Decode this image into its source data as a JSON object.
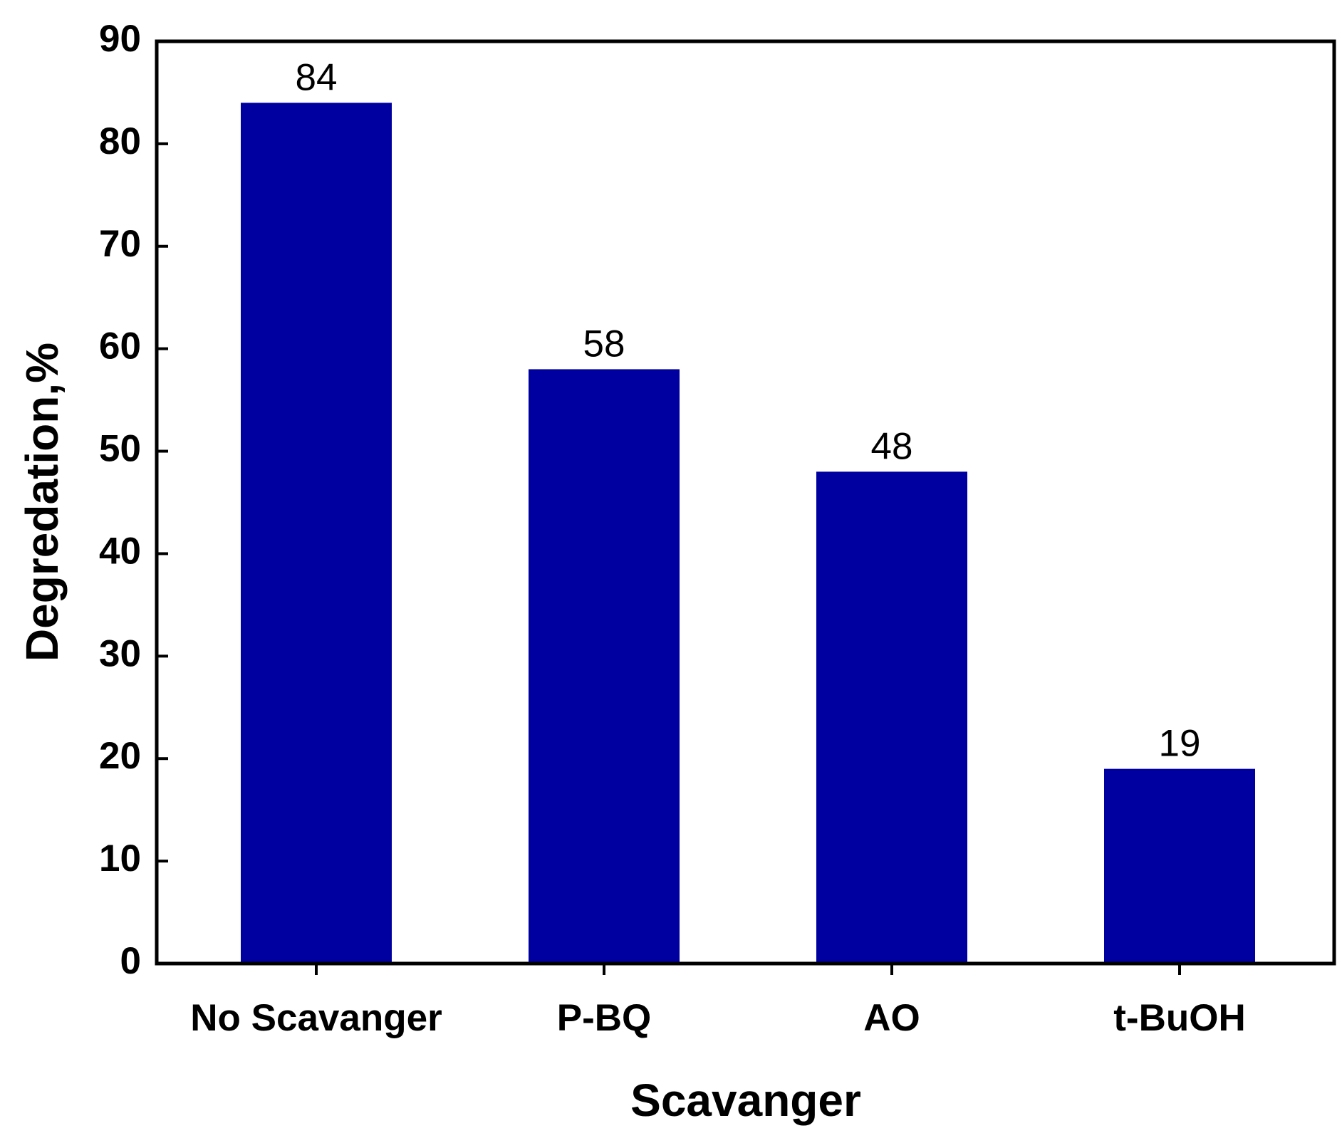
{
  "chart_data": {
    "type": "bar",
    "x_label": "Scavanger",
    "y_label": "Degredation,%",
    "categories": [
      "No Scavanger",
      "P-BQ",
      "AO",
      "t-BuOH"
    ],
    "values": [
      84,
      58,
      48,
      19
    ],
    "color": "#0000a0",
    "ylim": [
      0,
      90
    ],
    "yticks": [
      0,
      10,
      20,
      30,
      40,
      50,
      60,
      70,
      80,
      90
    ],
    "grid": false
  }
}
